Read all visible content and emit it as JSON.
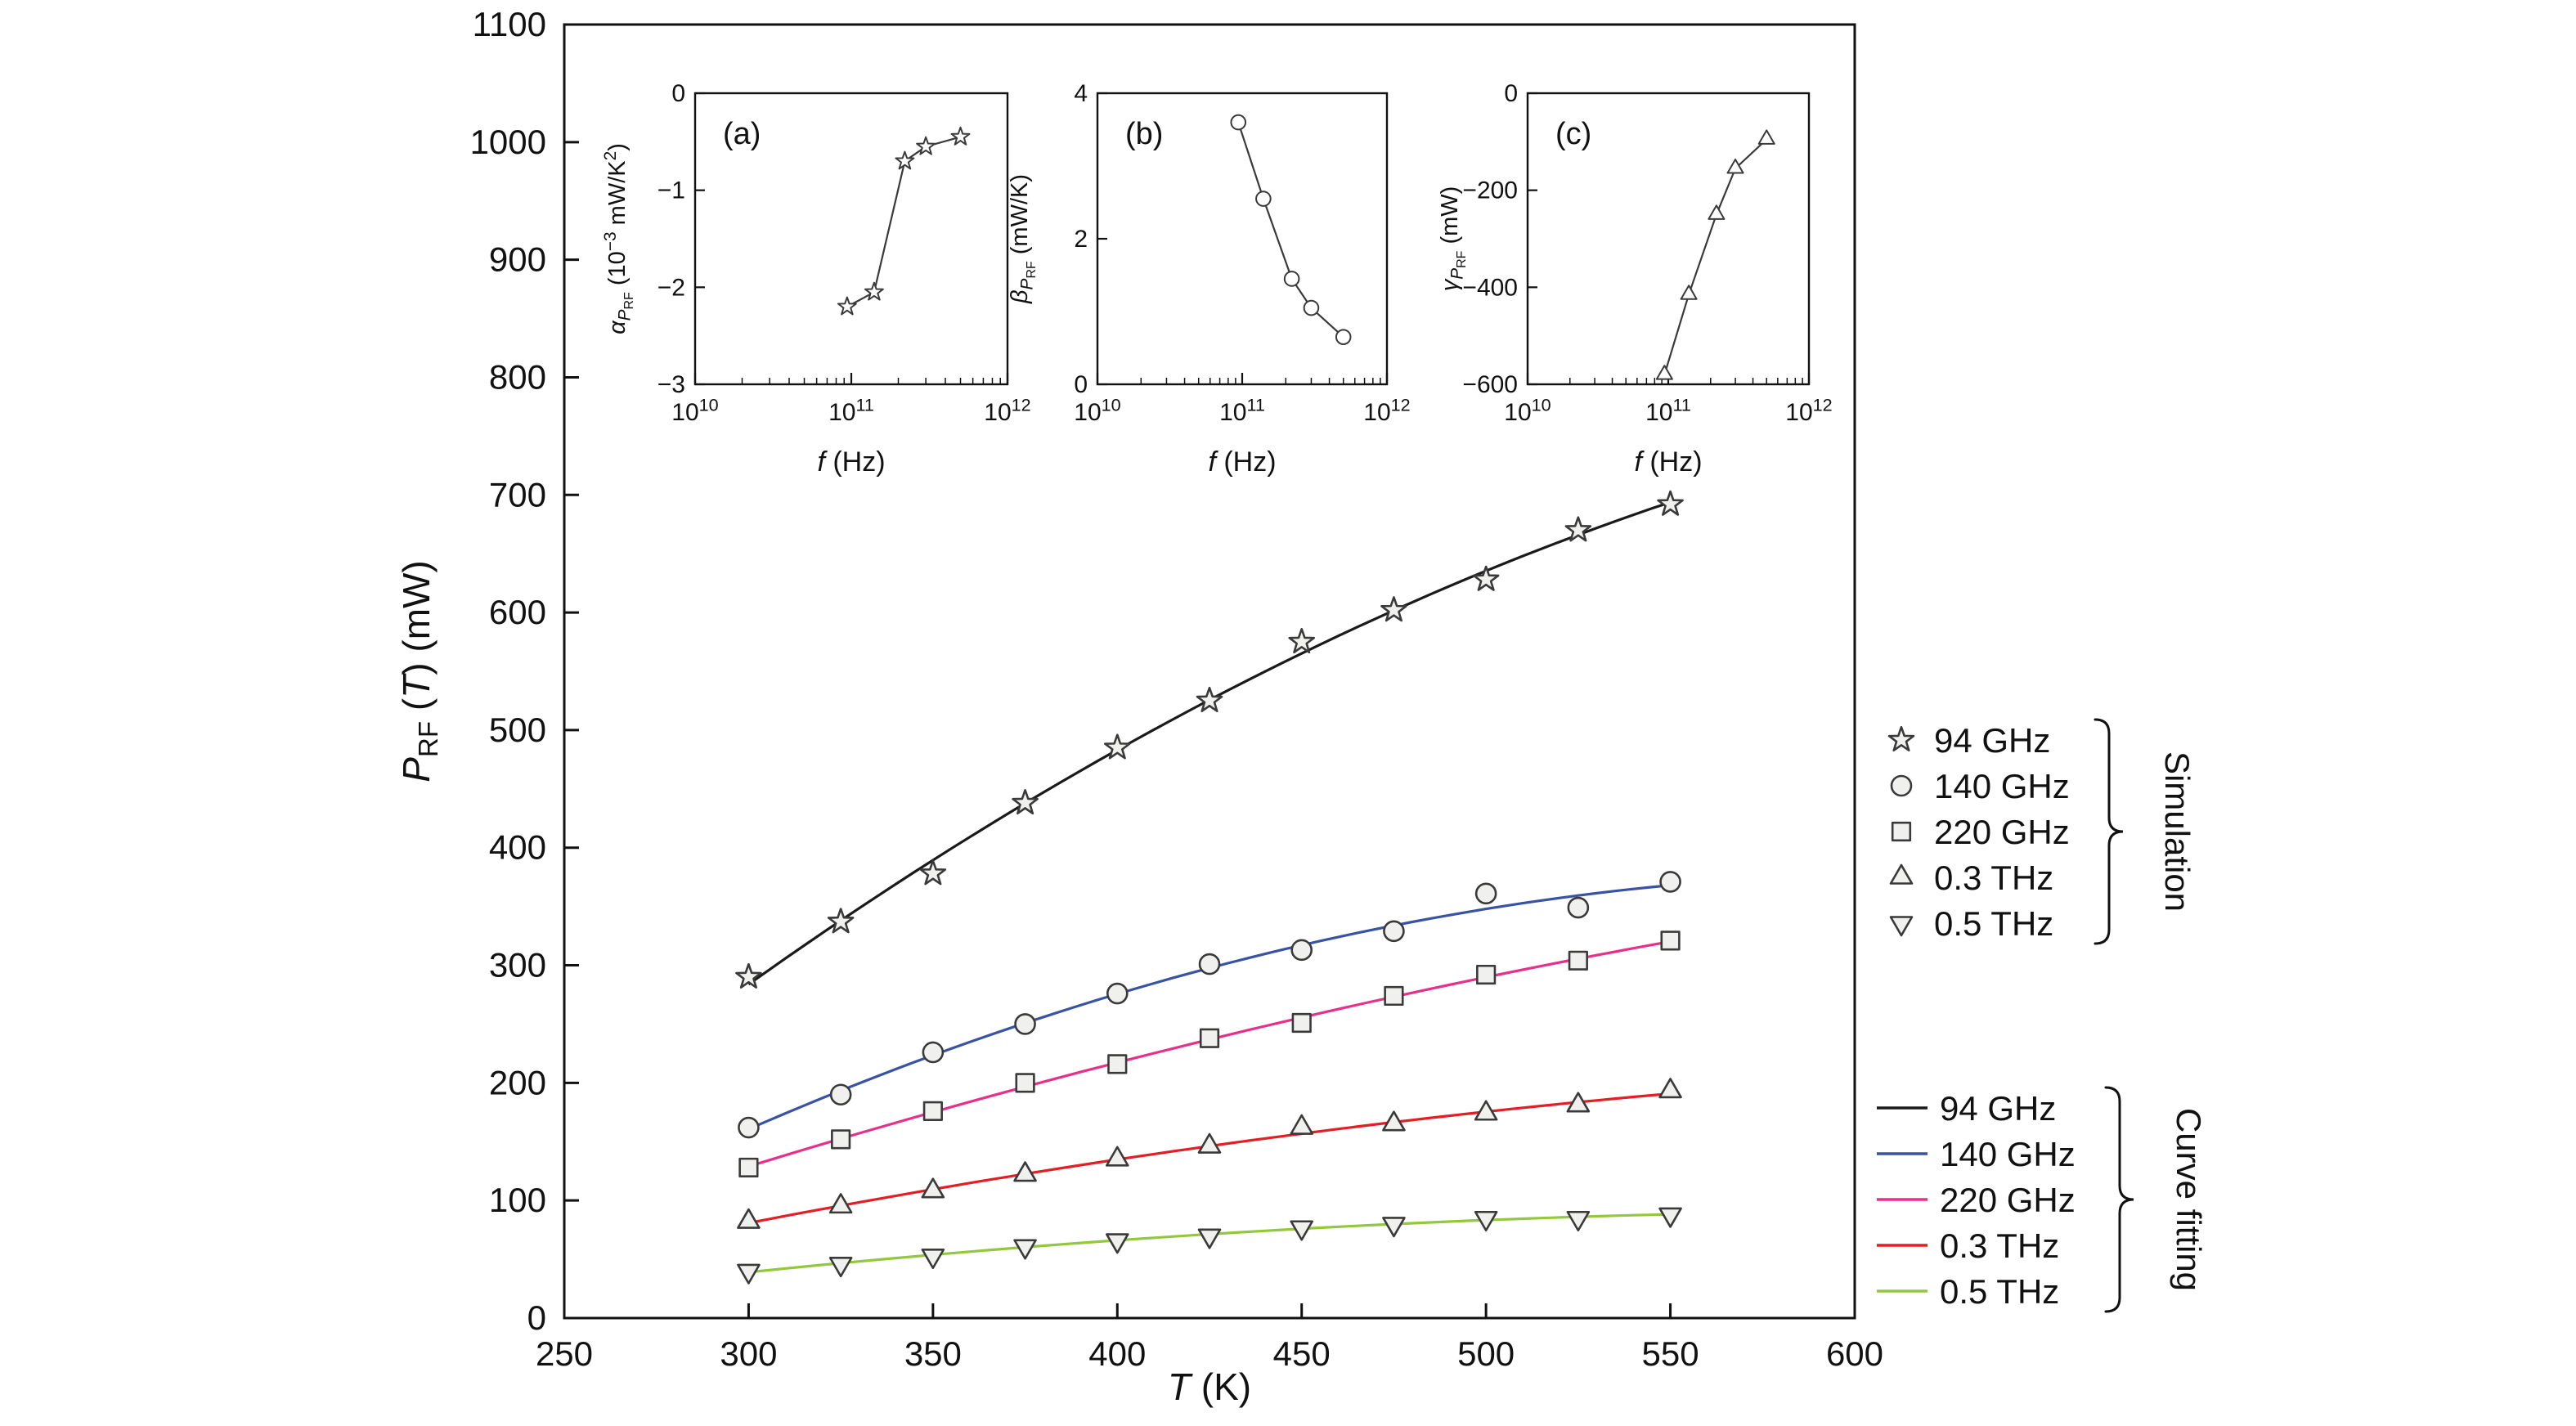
{
  "figure": {
    "background": "#ffffff",
    "axis_color": "#111111",
    "marker_stroke": "#3a3a3a",
    "marker_fill": "#f0f0ee"
  },
  "chart_data": [
    {
      "id": "main",
      "type": "scatter",
      "note": "simulation points (markers) with quadratic curve fits (lines)",
      "xlabel": [
        {
          "t": "T",
          "i": 1
        },
        {
          "t": " (K)"
        }
      ],
      "ylabel": [
        {
          "t": "P",
          "i": 1
        },
        {
          "t": "RF",
          "sub": 1
        },
        {
          "t": " ("
        },
        {
          "t": "T",
          "i": 1
        },
        {
          "t": ") (mW)"
        }
      ],
      "xlim": [
        250,
        600
      ],
      "ylim": [
        0,
        1100
      ],
      "xticks": [
        250,
        300,
        350,
        400,
        450,
        500,
        550,
        600
      ],
      "yticks": [
        0,
        100,
        200,
        300,
        400,
        500,
        600,
        700,
        800,
        900,
        1000,
        1100
      ],
      "x": [
        300,
        325,
        350,
        375,
        400,
        425,
        450,
        475,
        500,
        525,
        550
      ],
      "series": [
        {
          "name": "94 GHz",
          "marker": "star",
          "color": "#1a1a1a",
          "values": [
            290,
            337,
            378,
            438,
            485,
            525,
            575,
            602,
            628,
            670,
            692
          ]
        },
        {
          "name": "140 GHz",
          "marker": "circle",
          "color": "#3953a4",
          "values": [
            162,
            190,
            226,
            250,
            276,
            301,
            313,
            329,
            361,
            349,
            371
          ]
        },
        {
          "name": "220 GHz",
          "marker": "square",
          "color": "#e6308a",
          "values": [
            128,
            152,
            176,
            200,
            216,
            238,
            251,
            274,
            292,
            304,
            321
          ]
        },
        {
          "name": "0.3 THz",
          "marker": "triangle-up",
          "color": "#e31e24",
          "values": [
            82,
            95,
            108,
            122,
            135,
            146,
            162,
            165,
            174,
            181,
            193
          ]
        },
        {
          "name": "0.5 THz",
          "marker": "triangle-down",
          "color": "#93c83d",
          "values": [
            40,
            46,
            53,
            61,
            66,
            70,
            77,
            80,
            85,
            85,
            88
          ]
        }
      ]
    },
    {
      "id": "a",
      "type": "line",
      "panel_label": "(a)",
      "xlabel": [
        {
          "t": "f",
          "i": 1
        },
        {
          "t": " (Hz)"
        }
      ],
      "ylabel": [
        {
          "t": "α",
          "i": 1
        },
        {
          "t": "P",
          "i": 1,
          "sub": 1
        },
        {
          "t": "RF",
          "sub2": 1
        },
        {
          "t": " (10"
        },
        {
          "t": "−3",
          "sup": 1
        },
        {
          "t": " mW/K"
        },
        {
          "t": "2",
          "sup": 1
        },
        {
          "t": ")"
        }
      ],
      "xscale": "log",
      "xlim": [
        10000000000.0,
        1000000000000.0
      ],
      "ylim": [
        -3,
        0
      ],
      "yticks": [
        0,
        -1,
        -2,
        -3
      ],
      "marker": "star",
      "x": [
        94000000000.0,
        140000000000.0,
        220000000000.0,
        300000000000.0,
        500000000000.0
      ],
      "values": [
        -2.2,
        -2.05,
        -0.7,
        -0.55,
        -0.45
      ]
    },
    {
      "id": "b",
      "type": "line",
      "panel_label": "(b)",
      "xlabel": [
        {
          "t": "f",
          "i": 1
        },
        {
          "t": " (Hz)"
        }
      ],
      "ylabel": [
        {
          "t": "β",
          "i": 1
        },
        {
          "t": "P",
          "i": 1,
          "sub": 1
        },
        {
          "t": "RF",
          "sub2": 1
        },
        {
          "t": " (mW/K)"
        }
      ],
      "xscale": "log",
      "xlim": [
        10000000000.0,
        1000000000000.0
      ],
      "ylim": [
        0,
        4
      ],
      "yticks": [
        0,
        2,
        4
      ],
      "marker": "circle",
      "x": [
        94000000000.0,
        140000000000.0,
        220000000000.0,
        300000000000.0,
        500000000000.0
      ],
      "values": [
        3.6,
        2.55,
        1.45,
        1.05,
        0.65
      ]
    },
    {
      "id": "c",
      "type": "line",
      "panel_label": "(c)",
      "xlabel": [
        {
          "t": "f",
          "i": 1
        },
        {
          "t": " (Hz)"
        }
      ],
      "ylabel": [
        {
          "t": "γ",
          "i": 1
        },
        {
          "t": "P",
          "i": 1,
          "sub": 1
        },
        {
          "t": "RF",
          "sub2": 1
        },
        {
          "t": " (mW)"
        }
      ],
      "xscale": "log",
      "xlim": [
        10000000000.0,
        1000000000000.0
      ],
      "ylim": [
        -600,
        0
      ],
      "yticks": [
        0,
        -200,
        -400,
        -600
      ],
      "marker": "triangle-up",
      "x": [
        94000000000.0,
        140000000000.0,
        220000000000.0,
        300000000000.0,
        500000000000.0
      ],
      "values": [
        -580,
        -415,
        -250,
        -155,
        -95
      ]
    }
  ],
  "legend": {
    "simulation_title": "Simulation",
    "curve_fitting_title": "Curve fitting",
    "marker_items": [
      "94 GHz",
      "140 GHz",
      "220 GHz",
      "0.3 THz",
      "0.5 THz"
    ],
    "line_items": [
      "94 GHz",
      "140 GHz",
      "220 GHz",
      "0.3 THz",
      "0.5 THz"
    ]
  }
}
